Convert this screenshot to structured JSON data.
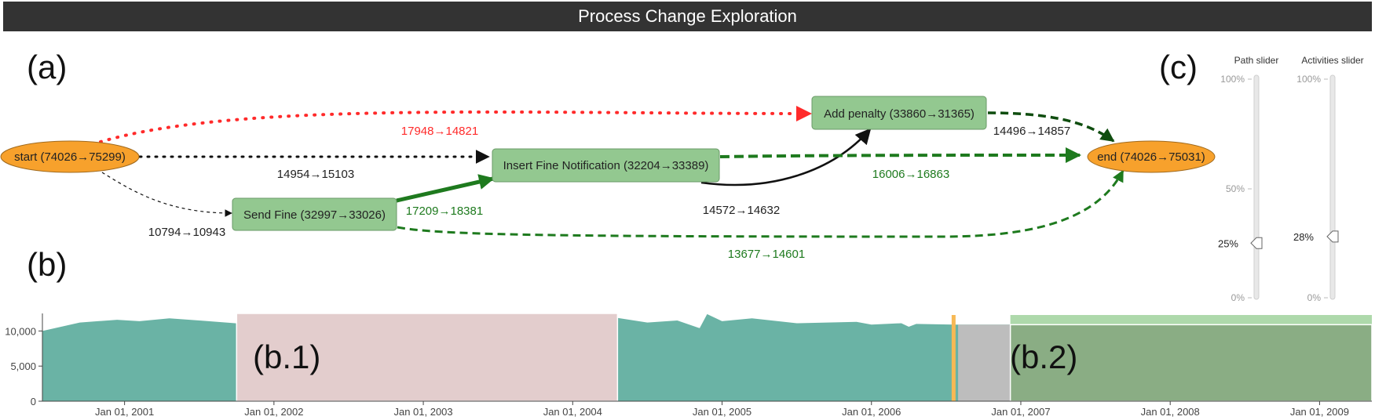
{
  "title": "Process Change Exploration",
  "panel_labels": {
    "a": "(a)",
    "b": "(b)",
    "c": "(c)",
    "b1": "(b.1)",
    "b2": "(b.2)"
  },
  "colors": {
    "activity": "#93c890",
    "start_end": "#f7a12c",
    "decreased": "#ff2a2a",
    "increased": "#1e7a1e",
    "increased_dark": "#0f4d0f",
    "neutral": "#111111",
    "area": "#6ab3a5",
    "highlight_red": "#f8c8c8",
    "highlight_green": "#8fc98c",
    "gap": "#bdbdbd",
    "marker": "#f7b955"
  },
  "nodes": {
    "start": "start (74026→75299)",
    "send_fine": "Send Fine (32997→33026)",
    "insert_fine": "Insert Fine Notification (32204→33389)",
    "add_penalty": "Add penalty (33860→31365)",
    "end": "end (74026→75031)"
  },
  "edges": {
    "start_add_penalty": "17948→14821",
    "start_insert_fine": "14954→15103",
    "start_send_fine": "10794→10943",
    "send_fine_insert_fine": "17209→18381",
    "insert_fine_add_penalty": "14572→14632",
    "insert_fine_end": "16006→16863",
    "add_penalty_end": "14496→14857",
    "send_fine_end": "13677→14601"
  },
  "sliders": {
    "path": {
      "title": "Path slider",
      "value": "25%",
      "level": 0.25,
      "ticks": [
        "100%",
        "50%",
        "0%"
      ]
    },
    "activities": {
      "title": "Activities slider",
      "value": "28%",
      "level": 0.28,
      "ticks": [
        "100%",
        "0%"
      ]
    }
  },
  "chart_data": {
    "type": "area",
    "y_ticks": [
      "10,000",
      "5,000",
      "0"
    ],
    "ylim": [
      0,
      12500
    ],
    "x_ticks": [
      "Jan 01, 2001",
      "Jan 01, 2002",
      "Jan 01, 2003",
      "Jan 01, 2004",
      "Jan 01, 2005",
      "Jan 01, 2006",
      "Jan 01, 2007",
      "Jan 01, 2008",
      "Jan 01, 2009"
    ],
    "x_range": [
      2000.45,
      2009.35
    ],
    "series": [
      {
        "x": [
          2000.45,
          2000.7,
          2000.95,
          2001.1,
          2001.3,
          2001.5,
          2001.8,
          2002.1,
          2002.3,
          2002.6,
          2002.8,
          2003.0,
          2003.3,
          2003.5,
          2003.7,
          2003.9,
          2004.0,
          2004.2,
          2004.5,
          2004.7,
          2004.85,
          2004.9,
          2005.0,
          2005.2,
          2005.5,
          2005.9,
          2006.0,
          2006.2,
          2006.25,
          2006.3,
          2006.55,
          2006.58,
          2009.35
        ],
        "y": [
          10000,
          11200,
          11600,
          11400,
          11800,
          11500,
          11000,
          10800,
          11400,
          12200,
          11900,
          12400,
          11800,
          12000,
          11400,
          12100,
          11600,
          12200,
          11200,
          11500,
          10400,
          12400,
          11400,
          11800,
          11100,
          11300,
          10900,
          11100,
          10600,
          11000,
          10900,
          10900,
          10900
        ]
      }
    ],
    "highlight_b1": {
      "from": 2001.75,
      "to": 2004.3
    },
    "marker": 2006.55,
    "gap": {
      "from": 2006.58,
      "to": 2006.93
    },
    "highlight_b2": {
      "from": 2006.93,
      "to": 2009.35
    }
  }
}
